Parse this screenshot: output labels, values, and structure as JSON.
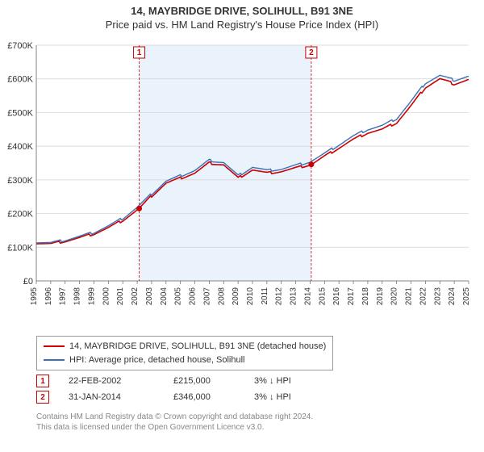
{
  "title": "14, MAYBRIDGE DRIVE, SOLIHULL, B91 3NE",
  "subtitle": "Price paid vs. HM Land Registry's House Price Index (HPI)",
  "chart": {
    "type": "line",
    "background_color": "#ffffff",
    "plot_bg": "#ffffff",
    "grid_color": "#d0d0d0",
    "axis_color": "#666666",
    "currency_prefix": "£",
    "ylim": [
      0,
      700000
    ],
    "ytick_step": 100000,
    "ytick_labels": [
      "£0",
      "£100K",
      "£200K",
      "£300K",
      "£400K",
      "£500K",
      "£600K",
      "£700K"
    ],
    "x_years": [
      1995,
      1996,
      1997,
      1998,
      1999,
      2000,
      2001,
      2002,
      2003,
      2004,
      2005,
      2006,
      2007,
      2008,
      2009,
      2010,
      2011,
      2012,
      2013,
      2014,
      2015,
      2016,
      2017,
      2018,
      2019,
      2020,
      2021,
      2022,
      2023,
      2024,
      2025
    ],
    "shaded_band": {
      "from_year": 2002.14,
      "to_year": 2014.08,
      "fill": "#eaf2fb"
    },
    "series": [
      {
        "name": "price_paid",
        "label": "14, MAYBRIDGE DRIVE, SOLIHULL, B91 3NE (detached house)",
        "color": "#cc0000",
        "line_width": 1.6,
        "points": [
          [
            1995,
            112000
          ],
          [
            1996,
            110000
          ],
          [
            1997,
            118000
          ],
          [
            1998,
            128000
          ],
          [
            1999,
            140000
          ],
          [
            2000,
            158000
          ],
          [
            2001,
            180000
          ],
          [
            2002.14,
            215000
          ],
          [
            2003,
            252000
          ],
          [
            2004,
            290000
          ],
          [
            2005,
            305000
          ],
          [
            2006,
            320000
          ],
          [
            2007,
            350000
          ],
          [
            2008,
            345000
          ],
          [
            2009,
            305000
          ],
          [
            2010,
            330000
          ],
          [
            2011,
            320000
          ],
          [
            2012,
            325000
          ],
          [
            2013,
            335000
          ],
          [
            2014.08,
            346000
          ],
          [
            2015,
            370000
          ],
          [
            2016,
            395000
          ],
          [
            2017,
            420000
          ],
          [
            2018,
            440000
          ],
          [
            2019,
            450000
          ],
          [
            2020,
            470000
          ],
          [
            2021,
            520000
          ],
          [
            2022,
            575000
          ],
          [
            2023,
            600000
          ],
          [
            2024,
            585000
          ],
          [
            2025,
            598000
          ]
        ]
      },
      {
        "name": "hpi",
        "label": "HPI: Average price, detached house, Solihull",
        "color": "#3b6fb6",
        "line_width": 1.4,
        "points": [
          [
            1995,
            115000
          ],
          [
            1996,
            113000
          ],
          [
            1997,
            121000
          ],
          [
            1998,
            132000
          ],
          [
            1999,
            144000
          ],
          [
            2000,
            163000
          ],
          [
            2001,
            186000
          ],
          [
            2002,
            218000
          ],
          [
            2003,
            258000
          ],
          [
            2004,
            296000
          ],
          [
            2005,
            312000
          ],
          [
            2006,
            328000
          ],
          [
            2007,
            358000
          ],
          [
            2008,
            352000
          ],
          [
            2009,
            312000
          ],
          [
            2010,
            338000
          ],
          [
            2011,
            328000
          ],
          [
            2012,
            332000
          ],
          [
            2013,
            343000
          ],
          [
            2014,
            354000
          ],
          [
            2015,
            378000
          ],
          [
            2016,
            404000
          ],
          [
            2017,
            430000
          ],
          [
            2018,
            450000
          ],
          [
            2019,
            461000
          ],
          [
            2020,
            482000
          ],
          [
            2021,
            533000
          ],
          [
            2022,
            588000
          ],
          [
            2023,
            610000
          ],
          [
            2024,
            596000
          ],
          [
            2025,
            608000
          ]
        ]
      }
    ],
    "sale_markers": [
      {
        "id": "1",
        "year": 2002.14,
        "value": 215000
      },
      {
        "id": "2",
        "year": 2014.08,
        "value": 346000
      }
    ]
  },
  "legend": {
    "items": [
      {
        "color": "#cc0000",
        "label": "14, MAYBRIDGE DRIVE, SOLIHULL, B91 3NE (detached house)"
      },
      {
        "color": "#3b6fb6",
        "label": "HPI: Average price, detached house, Solihull"
      }
    ]
  },
  "marker_table": [
    {
      "id": "1",
      "date": "22-FEB-2002",
      "price": "£215,000",
      "diff": "3% ↓ HPI"
    },
    {
      "id": "2",
      "date": "31-JAN-2014",
      "price": "£346,000",
      "diff": "3% ↓ HPI"
    }
  ],
  "footnote_line1": "Contains HM Land Registry data © Crown copyright and database right 2024.",
  "footnote_line2": "This data is licensed under the Open Government Licence v3.0.",
  "colors": {
    "marker_border": "#cc0000",
    "footnote": "#888888"
  }
}
